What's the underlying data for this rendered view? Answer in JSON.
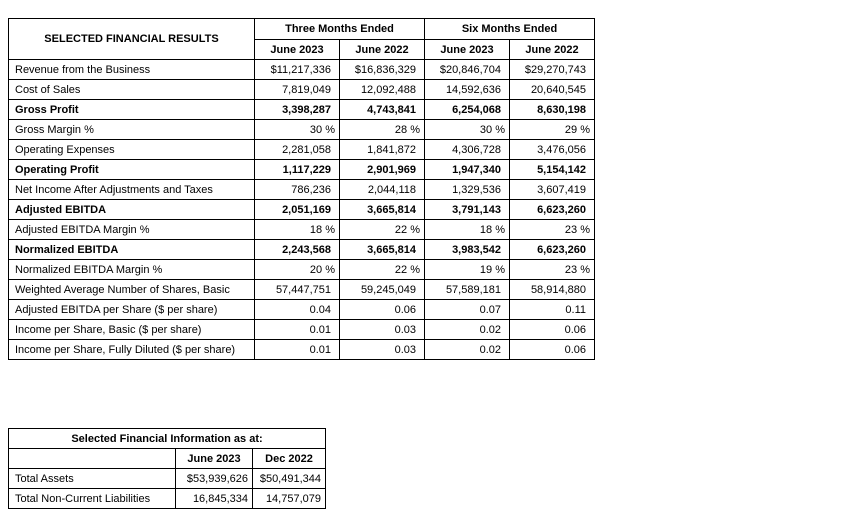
{
  "colors": {
    "text": "#000000",
    "border": "#000000",
    "background": "#ffffff"
  },
  "results_table": {
    "title": "SELECTED FINANCIAL RESULTS",
    "col_groups": [
      {
        "label": "Three Months Ended"
      },
      {
        "label": "Six Months Ended"
      }
    ],
    "col_headers": [
      "June 2023",
      "June 2022",
      "June 2023",
      "June 2022"
    ],
    "rows": [
      {
        "label": "Revenue from the Business",
        "bold": false,
        "values": [
          "$11,217,336",
          "$16,836,329",
          "$20,846,704",
          "$29,270,743"
        ]
      },
      {
        "label": "Cost of Sales",
        "bold": false,
        "values": [
          "7,819,049",
          "12,092,488",
          "14,592,636",
          "20,640,545"
        ]
      },
      {
        "label": "Gross Profit",
        "bold": true,
        "values": [
          "3,398,287",
          "4,743,841",
          "6,254,068",
          "8,630,198"
        ]
      },
      {
        "label": "Gross Margin %",
        "bold": false,
        "values": [
          "30 %",
          "28 %",
          "30 %",
          "29 %"
        ]
      },
      {
        "label": "Operating Expenses",
        "bold": false,
        "values": [
          "2,281,058",
          "1,841,872",
          "4,306,728",
          "3,476,056"
        ]
      },
      {
        "label": "Operating Profit",
        "bold": true,
        "values": [
          "1,117,229",
          "2,901,969",
          "1,947,340",
          "5,154,142"
        ]
      },
      {
        "label": "Net Income After Adjustments and Taxes",
        "bold": false,
        "values": [
          "786,236",
          "2,044,118",
          "1,329,536",
          "3,607,419"
        ]
      },
      {
        "label": "Adjusted EBITDA",
        "bold": true,
        "values": [
          "2,051,169",
          "3,665,814",
          "3,791,143",
          "6,623,260"
        ]
      },
      {
        "label": "Adjusted EBITDA Margin %",
        "bold": false,
        "values": [
          "18 %",
          "22 %",
          "18 %",
          "23 %"
        ]
      },
      {
        "label": "Normalized EBITDA",
        "bold": true,
        "values": [
          "2,243,568",
          "3,665,814",
          "3,983,542",
          "6,623,260"
        ]
      },
      {
        "label": "Normalized EBITDA Margin %",
        "bold": false,
        "values": [
          "20 %",
          "22 %",
          "19 %",
          "23 %"
        ]
      },
      {
        "label": "Weighted Average Number of Shares, Basic",
        "bold": false,
        "values": [
          "57,447,751",
          "59,245,049",
          "57,589,181",
          "58,914,880"
        ]
      },
      {
        "label": "Adjusted EBITDA per Share ($ per share)",
        "bold": false,
        "values": [
          "0.04",
          "0.06",
          "0.07",
          "0.11"
        ]
      },
      {
        "label": "Income per Share, Basic ($ per share)",
        "bold": false,
        "values": [
          "0.01",
          "0.03",
          "0.02",
          "0.06"
        ]
      },
      {
        "label": "Income per Share, Fully Diluted ($ per share)",
        "bold": false,
        "values": [
          "0.01",
          "0.03",
          "0.02",
          "0.06"
        ]
      }
    ]
  },
  "position_table": {
    "title": "Selected Financial Information as at:",
    "col_headers": [
      "June 2023",
      "Dec 2022"
    ],
    "rows": [
      {
        "label": "Total Assets",
        "values": [
          "$53,939,626",
          "$50,491,344"
        ]
      },
      {
        "label": "Total Non-Current Liabilities",
        "values": [
          "16,845,334",
          "14,757,079"
        ]
      }
    ]
  }
}
